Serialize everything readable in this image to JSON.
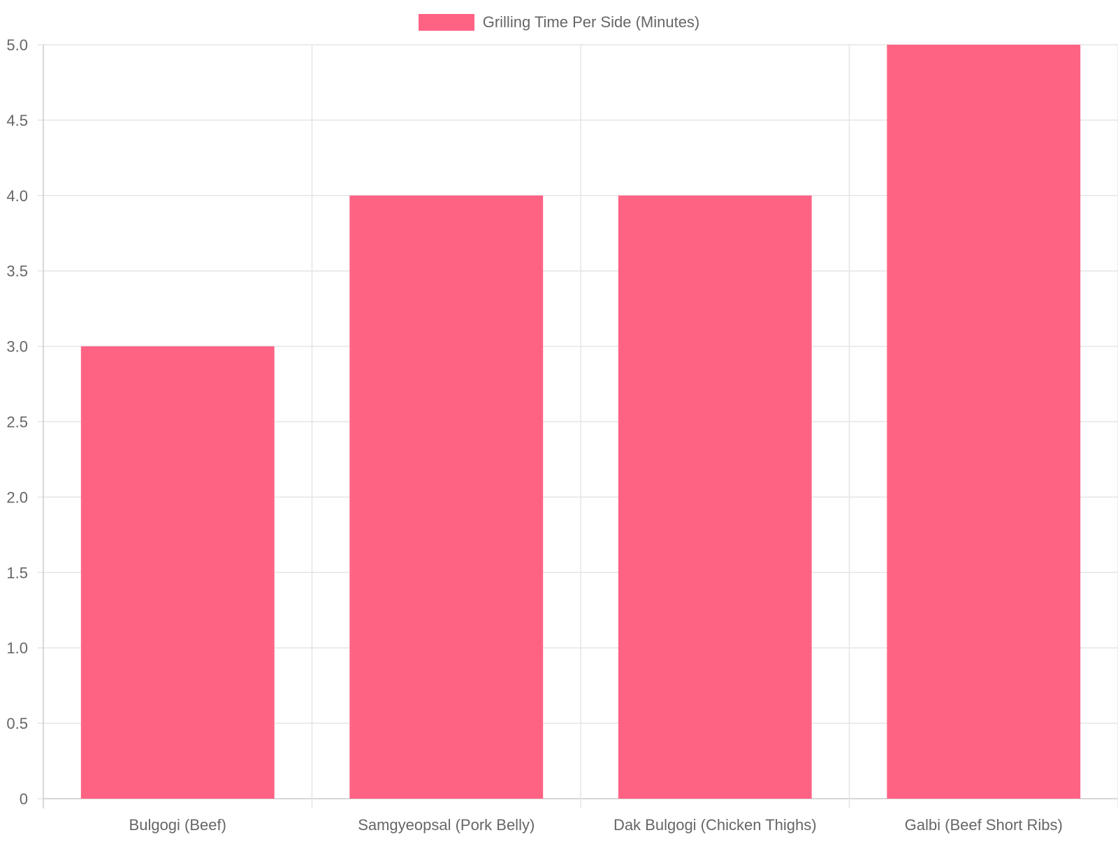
{
  "chart_data": {
    "type": "bar",
    "categories": [
      "Bulgogi (Beef)",
      "Samgyeopsal (Pork Belly)",
      "Dak Bulgogi (Chicken Thighs)",
      "Galbi (Beef Short Ribs)"
    ],
    "series": [
      {
        "name": "Grilling Time Per Side (Minutes)",
        "values": [
          3,
          4,
          4,
          5
        ]
      }
    ],
    "ylim": [
      0,
      5
    ],
    "yticks": [
      "0",
      "0.5",
      "1.0",
      "1.5",
      "2.0",
      "2.5",
      "3.0",
      "3.5",
      "4.0",
      "4.5",
      "5.0"
    ],
    "legend_position": "top",
    "grid": true,
    "colors": {
      "bar": "#ff6384",
      "grid": "#e5e5e5",
      "axis": "#cccccc",
      "text": "#666666"
    }
  }
}
